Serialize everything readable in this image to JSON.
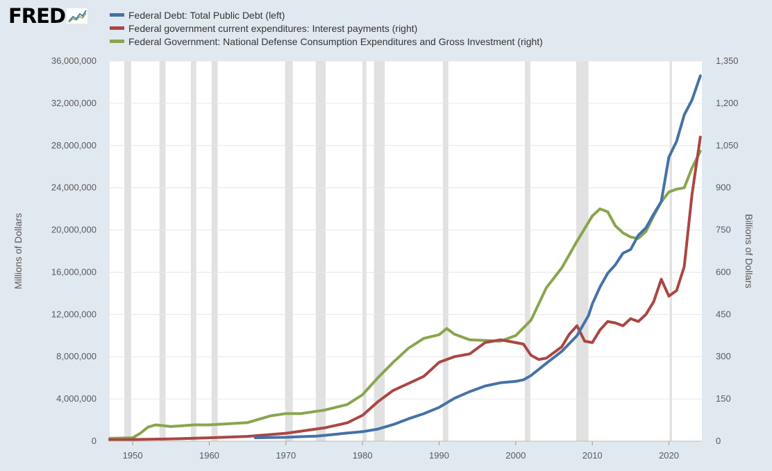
{
  "logo": {
    "text": "FRED",
    "icon": "fred-chart-icon"
  },
  "chart_data": {
    "type": "line",
    "grid": "horizontal",
    "legend_position": "top-left",
    "xlim": [
      1947,
      2024.3
    ],
    "x_ticks": [
      "1950",
      "1960",
      "1970",
      "1980",
      "1990",
      "2000",
      "2010",
      "2020"
    ],
    "x_tick_values": [
      1950,
      1960,
      1970,
      1980,
      1990,
      2000,
      2010,
      2020
    ],
    "left_axis": {
      "label": "Millions of Dollars",
      "lim": [
        0,
        36000000
      ],
      "tick_values": [
        0,
        4000000,
        8000000,
        12000000,
        16000000,
        20000000,
        24000000,
        28000000,
        32000000,
        36000000
      ],
      "ticks": [
        "0",
        "4,000,000",
        "8,000,000",
        "12,000,000",
        "16,000,000",
        "20,000,000",
        "24,000,000",
        "28,000,000",
        "32,000,000",
        "36,000,000"
      ]
    },
    "right_axis": {
      "label": "Billions of Dollars",
      "lim": [
        0,
        1350
      ],
      "tick_values": [
        0,
        150,
        300,
        450,
        600,
        750,
        900,
        1050,
        1200,
        1350
      ],
      "ticks": [
        "0",
        "150",
        "300",
        "450",
        "600",
        "750",
        "900",
        "1,050",
        "1,200",
        "1,350"
      ]
    },
    "recessions": [
      [
        1948.9,
        1949.8
      ],
      [
        1953.5,
        1954.3
      ],
      [
        1957.6,
        1958.3
      ],
      [
        1960.3,
        1961.1
      ],
      [
        1969.9,
        1970.9
      ],
      [
        1973.9,
        1975.2
      ],
      [
        1980.0,
        1980.5
      ],
      [
        1981.5,
        1982.9
      ],
      [
        1990.5,
        1991.2
      ],
      [
        2001.2,
        2001.9
      ],
      [
        2007.9,
        2009.5
      ],
      [
        2020.1,
        2020.4
      ]
    ],
    "series": [
      {
        "name": "Federal Debt: Total Public Debt (left)",
        "axis": "left",
        "color": "#4572a7",
        "points": [
          [
            1966,
            320000
          ],
          [
            1968,
            350000
          ],
          [
            1970,
            370000
          ],
          [
            1972,
            430000
          ],
          [
            1974,
            480000
          ],
          [
            1976,
            620000
          ],
          [
            1978,
            770000
          ],
          [
            1980,
            900000
          ],
          [
            1982,
            1140000
          ],
          [
            1984,
            1570000
          ],
          [
            1986,
            2120000
          ],
          [
            1988,
            2600000
          ],
          [
            1990,
            3200000
          ],
          [
            1992,
            4060000
          ],
          [
            1994,
            4690000
          ],
          [
            1996,
            5220000
          ],
          [
            1998,
            5530000
          ],
          [
            2000,
            5660000
          ],
          [
            2001,
            5810000
          ],
          [
            2002,
            6220000
          ],
          [
            2004,
            7380000
          ],
          [
            2006,
            8500000
          ],
          [
            2008,
            9990000
          ],
          [
            2009.5,
            11900000
          ],
          [
            2010,
            13000000
          ],
          [
            2011,
            14600000
          ],
          [
            2012,
            15900000
          ],
          [
            2013,
            16700000
          ],
          [
            2014,
            17800000
          ],
          [
            2015,
            18150000
          ],
          [
            2016,
            19500000
          ],
          [
            2017,
            20200000
          ],
          [
            2018,
            21500000
          ],
          [
            2019,
            22700000
          ],
          [
            2020,
            26900000
          ],
          [
            2021,
            28400000
          ],
          [
            2022,
            30900000
          ],
          [
            2023,
            32300000
          ],
          [
            2024.1,
            34600000
          ]
        ]
      },
      {
        "name": "Federal government current expenditures: Interest payments (right)",
        "axis": "right",
        "color": "#aa4643",
        "points": [
          [
            1947,
            5
          ],
          [
            1950,
            6
          ],
          [
            1955,
            8
          ],
          [
            1960,
            12
          ],
          [
            1965,
            17
          ],
          [
            1970,
            28
          ],
          [
            1975,
            47
          ],
          [
            1978,
            65
          ],
          [
            1980,
            92
          ],
          [
            1982,
            140
          ],
          [
            1984,
            180
          ],
          [
            1986,
            205
          ],
          [
            1988,
            230
          ],
          [
            1990,
            280
          ],
          [
            1992,
            300
          ],
          [
            1994,
            310
          ],
          [
            1996,
            350
          ],
          [
            1998,
            360
          ],
          [
            2000,
            350
          ],
          [
            2001,
            345
          ],
          [
            2002,
            305
          ],
          [
            2003,
            290
          ],
          [
            2004,
            295
          ],
          [
            2006,
            335
          ],
          [
            2007,
            380
          ],
          [
            2008,
            410
          ],
          [
            2009,
            355
          ],
          [
            2010,
            350
          ],
          [
            2011,
            395
          ],
          [
            2012,
            425
          ],
          [
            2013,
            420
          ],
          [
            2014,
            410
          ],
          [
            2015,
            435
          ],
          [
            2016,
            425
          ],
          [
            2017,
            450
          ],
          [
            2018,
            495
          ],
          [
            2019,
            575
          ],
          [
            2020,
            515
          ],
          [
            2021,
            535
          ],
          [
            2022,
            620
          ],
          [
            2023,
            875
          ],
          [
            2024.1,
            1080
          ]
        ]
      },
      {
        "name": "Federal Government: National Defense Consumption Expenditures and Gross Investment (right)",
        "axis": "right",
        "color": "#89a54e",
        "points": [
          [
            1947,
            10
          ],
          [
            1950,
            12
          ],
          [
            1951,
            28
          ],
          [
            1952,
            50
          ],
          [
            1953,
            58
          ],
          [
            1955,
            52
          ],
          [
            1958,
            58
          ],
          [
            1960,
            58
          ],
          [
            1965,
            66
          ],
          [
            1968,
            90
          ],
          [
            1970,
            98
          ],
          [
            1972,
            98
          ],
          [
            1975,
            110
          ],
          [
            1978,
            130
          ],
          [
            1980,
            165
          ],
          [
            1982,
            225
          ],
          [
            1984,
            280
          ],
          [
            1986,
            330
          ],
          [
            1988,
            365
          ],
          [
            1990,
            378
          ],
          [
            1991,
            400
          ],
          [
            1992,
            380
          ],
          [
            1994,
            360
          ],
          [
            1996,
            358
          ],
          [
            1998,
            355
          ],
          [
            2000,
            375
          ],
          [
            2002,
            430
          ],
          [
            2004,
            545
          ],
          [
            2006,
            615
          ],
          [
            2008,
            710
          ],
          [
            2010,
            800
          ],
          [
            2011,
            825
          ],
          [
            2012,
            815
          ],
          [
            2013,
            765
          ],
          [
            2014,
            740
          ],
          [
            2015,
            725
          ],
          [
            2016,
            720
          ],
          [
            2017,
            745
          ],
          [
            2018,
            800
          ],
          [
            2019,
            850
          ],
          [
            2020,
            885
          ],
          [
            2021,
            895
          ],
          [
            2022,
            900
          ],
          [
            2023,
            970
          ],
          [
            2024.1,
            1030
          ]
        ]
      }
    ]
  }
}
